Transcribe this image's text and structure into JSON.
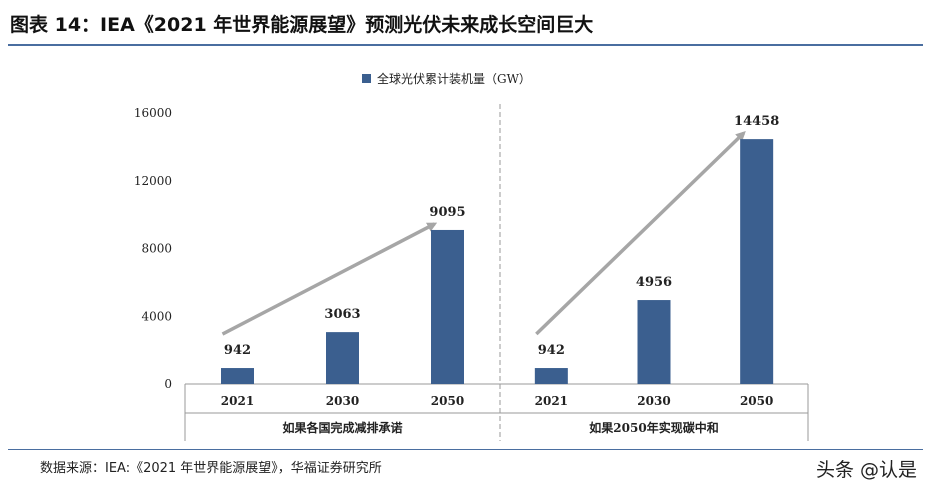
{
  "title": "图表 14：IEA《2021 年世界能源展望》预测光伏未来成长空间巨大",
  "source": "数据来源：IEA:《2021 年世界能源展望》，华福证券研究所",
  "watermark": "头条 @认是",
  "colors": {
    "bar": "#3b5f8f",
    "arrow": "#a6a6a6",
    "axis": "#9a9a9a",
    "rule": "#4a6ea0"
  },
  "chart_data": {
    "type": "bar",
    "legend": "全球光伏累计装机量（GW）",
    "legend_position": "top-center",
    "ylim": [
      0,
      16000
    ],
    "yticks": [
      0,
      4000,
      8000,
      12000,
      16000
    ],
    "groups": [
      {
        "label": "如果各国完成减排承诺",
        "categories": [
          "2021",
          "2030",
          "2050"
        ],
        "values": [
          942,
          3063,
          9095
        ],
        "data_labels": [
          "942",
          "3063",
          "9095"
        ]
      },
      {
        "label": "如果2050年实现碳中和",
        "categories": [
          "2021",
          "2030",
          "2050"
        ],
        "values": [
          942,
          4956,
          14458
        ],
        "data_labels": [
          "942",
          "4956",
          "14458"
        ]
      }
    ],
    "annotations": [
      "upward growth arrow in each scenario"
    ]
  }
}
